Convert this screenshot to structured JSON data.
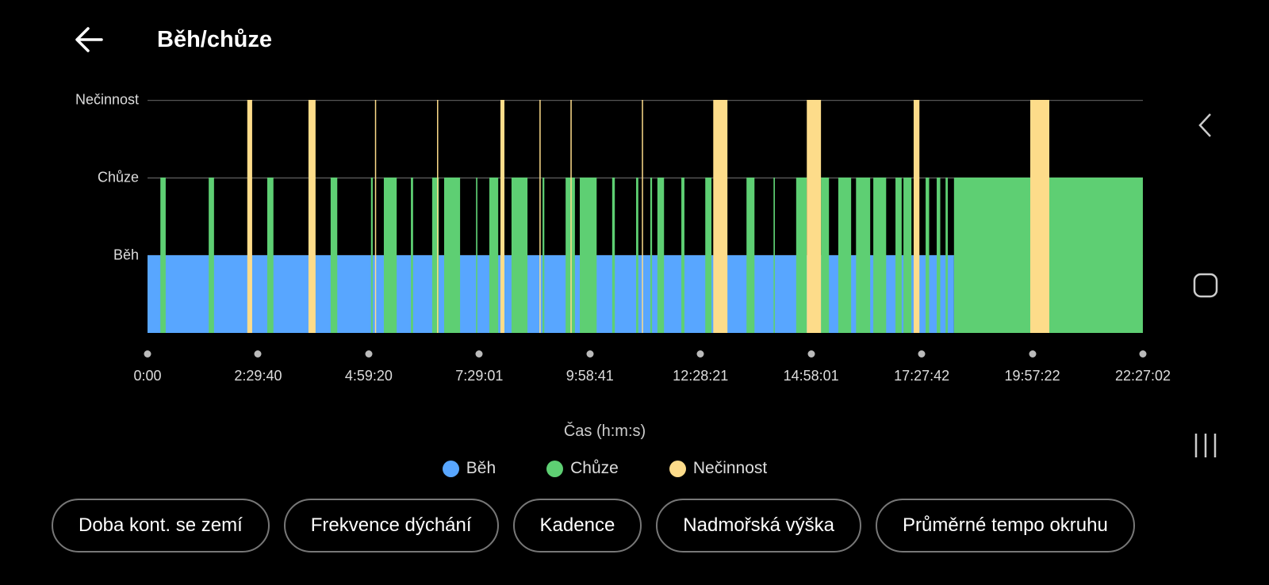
{
  "header": {
    "title": "Běh/chůze",
    "back_icon": "arrow-left-icon"
  },
  "colors": {
    "run": "#58a6ff",
    "walk": "#5ecf73",
    "idle": "#fddc8a",
    "grid": "#555555"
  },
  "chart_data": {
    "type": "bar",
    "subtype": "state-timeline",
    "x_unit": "hours",
    "xlim": [
      0,
      22.4506
    ],
    "xlabel": "Čas (h:m:s)",
    "y_levels": [
      "Běh",
      "Chůze",
      "Nečinnost"
    ],
    "x_ticks": [
      "0:00",
      "2:29:40",
      "4:59:20",
      "7:29:01",
      "9:58:41",
      "12:28:21",
      "14:58:01",
      "17:27:42",
      "19:57:22",
      "22:27:02"
    ],
    "legend": [
      {
        "name": "Běh",
        "state": "run"
      },
      {
        "name": "Chůze",
        "state": "walk"
      },
      {
        "name": "Nečinnost",
        "state": "idle"
      }
    ],
    "legend_position": "bottom",
    "run_segments": [
      [
        0,
        18.19
      ]
    ],
    "walk_segments": [
      [
        0.29,
        0.41
      ],
      [
        1.38,
        1.5
      ],
      [
        2.7,
        2.84
      ],
      [
        4.13,
        4.28
      ],
      [
        5.04,
        5.08
      ],
      [
        5.33,
        5.62
      ],
      [
        5.94,
        5.99
      ],
      [
        6.42,
        6.57
      ],
      [
        6.69,
        7.05
      ],
      [
        7.41,
        7.44
      ],
      [
        7.71,
        7.91
      ],
      [
        8.21,
        8.57
      ],
      [
        8.91,
        8.95
      ],
      [
        9.43,
        9.64
      ],
      [
        9.75,
        10.13
      ],
      [
        10.48,
        10.54
      ],
      [
        11.02,
        11.07
      ],
      [
        11.34,
        11.38
      ],
      [
        11.5,
        11.65
      ],
      [
        12.04,
        12.11
      ],
      [
        12.58,
        12.72
      ],
      [
        13.51,
        13.69
      ],
      [
        14.12,
        14.15
      ],
      [
        14.63,
        14.87
      ],
      [
        15.19,
        15.37
      ],
      [
        15.58,
        15.87
      ],
      [
        15.98,
        16.3
      ],
      [
        16.37,
        16.66
      ],
      [
        16.87,
        17.01
      ],
      [
        17.05,
        17.23
      ],
      [
        17.55,
        17.63
      ],
      [
        17.8,
        17.88
      ],
      [
        18.0,
        18.05
      ],
      [
        18.19,
        22.45
      ]
    ],
    "idle_segments": [
      [
        2.25,
        2.36
      ],
      [
        3.63,
        3.79
      ],
      [
        5.13,
        5.15
      ],
      [
        6.53,
        6.55
      ],
      [
        7.96,
        8.05
      ],
      [
        8.84,
        8.86
      ],
      [
        9.54,
        9.56
      ],
      [
        11.15,
        11.17
      ],
      [
        12.76,
        13.08
      ],
      [
        14.87,
        15.19
      ],
      [
        17.28,
        17.41
      ],
      [
        19.91,
        20.34
      ]
    ]
  },
  "chips": [
    "Doba kont. se zemí",
    "Frekvence dýchání",
    "Kadence",
    "Nadmořská výška",
    "Průměrné tempo okruhu"
  ],
  "nav": {
    "back": "chevron-left-icon",
    "home": "square-icon",
    "recents": "three-bars-icon"
  }
}
